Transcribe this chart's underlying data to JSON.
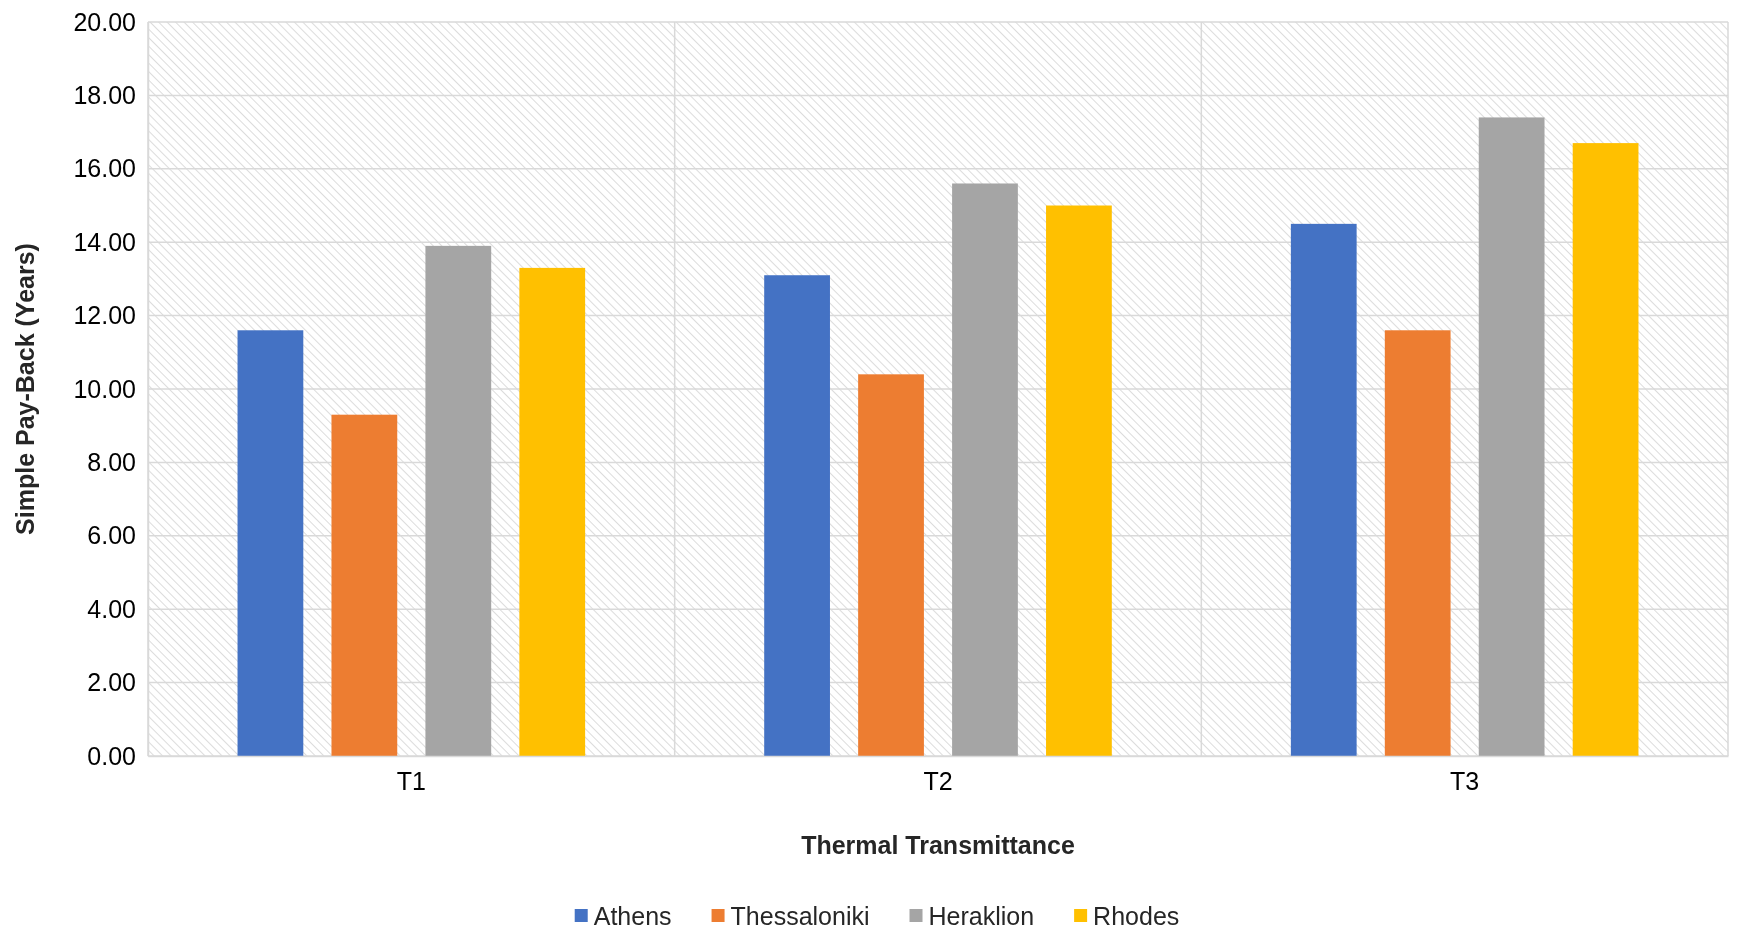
{
  "chart_data": {
    "type": "bar",
    "xlabel": "Thermal Transmittance",
    "ylabel": "Simple Pay-Back (Years)",
    "categories": [
      "T1",
      "T2",
      "T3"
    ],
    "series": [
      {
        "name": "Athens",
        "color": "#4472c4",
        "values": [
          11.6,
          13.1,
          14.5
        ]
      },
      {
        "name": "Thessaloniki",
        "color": "#ed7d31",
        "values": [
          9.3,
          10.4,
          11.6
        ]
      },
      {
        "name": "Heraklion",
        "color": "#a5a5a5",
        "values": [
          13.9,
          15.6,
          17.4
        ]
      },
      {
        "name": "Rhodes",
        "color": "#ffc000",
        "values": [
          13.3,
          15.0,
          16.7
        ]
      }
    ],
    "ylim": [
      0,
      20
    ],
    "yticks": [
      {
        "value": 0,
        "label": "0.00"
      },
      {
        "value": 2,
        "label": "2.00"
      },
      {
        "value": 4,
        "label": "4.00"
      },
      {
        "value": 6,
        "label": "6.00"
      },
      {
        "value": 8,
        "label": "8.00"
      },
      {
        "value": 10,
        "label": "10.00"
      },
      {
        "value": 12,
        "label": "12.00"
      },
      {
        "value": 14,
        "label": "14.00"
      },
      {
        "value": 16,
        "label": "16.00"
      },
      {
        "value": 18,
        "label": "18.00"
      },
      {
        "value": 20,
        "label": "20.00"
      }
    ],
    "grid": true,
    "legend": "bottom"
  }
}
